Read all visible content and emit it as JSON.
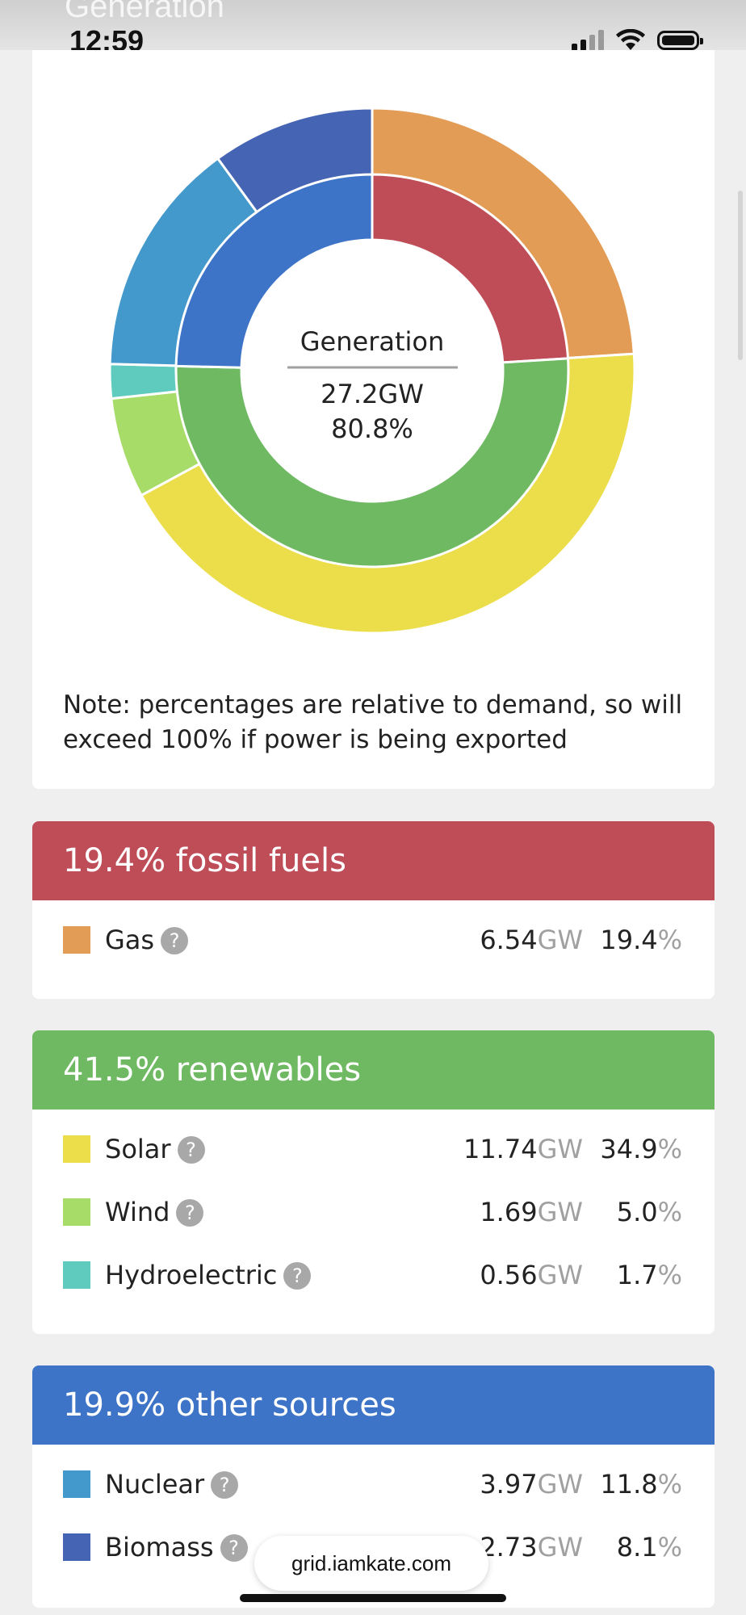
{
  "status_bar": {
    "time": "12:59",
    "header_title": "Generation"
  },
  "chart": {
    "center_title": "Generation",
    "center_value": "27.2GW",
    "center_percent": "80.8%"
  },
  "chart_data": {
    "type": "pie",
    "inner_ring": [
      {
        "name": "fossil fuels",
        "value": 19.4,
        "color": "#be4d58"
      },
      {
        "name": "renewables",
        "value": 41.5,
        "color": "#6fb963"
      },
      {
        "name": "other sources",
        "value": 19.9,
        "color": "#3d74c8"
      }
    ],
    "outer_ring": [
      {
        "name": "Gas",
        "value": 19.4,
        "color": "#e39c55"
      },
      {
        "name": "Solar",
        "value": 34.9,
        "color": "#ebde4a"
      },
      {
        "name": "Wind",
        "value": 5.0,
        "color": "#a8dc68"
      },
      {
        "name": "Hydroelectric",
        "value": 1.7,
        "color": "#5fcbbe"
      },
      {
        "name": "Nuclear",
        "value": 11.8,
        "color": "#4499cc"
      },
      {
        "name": "Biomass",
        "value": 8.1,
        "color": "#4564b4"
      }
    ]
  },
  "note": "Note: percentages are relative to demand, so will exceed 100% if power is being exported",
  "sections": {
    "fossil": {
      "title": "19.4% fossil fuels",
      "color": "#be4d58",
      "rows": [
        {
          "name": "Gas",
          "gw": "6.54",
          "pct": "19.4",
          "color": "#e39c55"
        }
      ]
    },
    "renewables": {
      "title": "41.5% renewables",
      "color": "#6fb963",
      "rows": [
        {
          "name": "Solar",
          "gw": "11.74",
          "pct": "34.9",
          "color": "#ebde4a"
        },
        {
          "name": "Wind",
          "gw": "1.69",
          "pct": "5.0",
          "color": "#a8dc68"
        },
        {
          "name": "Hydroelectric",
          "gw": "0.56",
          "pct": "1.7",
          "color": "#5fcbbe"
        }
      ]
    },
    "other": {
      "title": "19.9% other sources",
      "color": "#3d74c8",
      "rows": [
        {
          "name": "Nuclear",
          "gw": "3.97",
          "pct": "11.8",
          "color": "#4499cc"
        },
        {
          "name": "Biomass",
          "gw": "2.73",
          "pct": "8.1",
          "color": "#4564b4"
        }
      ]
    }
  },
  "units": {
    "gw": "GW",
    "pct": "%"
  },
  "help_glyph": "?",
  "url": "grid.iamkate.com"
}
